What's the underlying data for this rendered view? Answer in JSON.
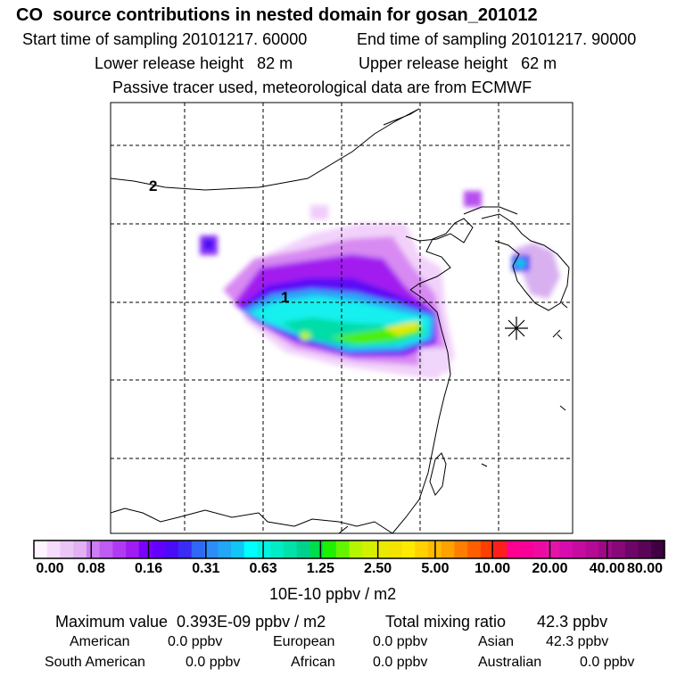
{
  "header": {
    "title": "CO  source contributions in nested domain for gosan_201012",
    "start_label": "Start time of sampling 20101217. 60000",
    "end_label": "End time of sampling 20101217. 90000",
    "lower_label": "Lower release height   82 m",
    "upper_label": "Upper release height   62 m",
    "tracer_label": "Passive tracer used, meteorological data are from ECMWF"
  },
  "map": {
    "contour_labels": [
      "2",
      "1"
    ],
    "receptor_marker": "asterisk-marker",
    "colors": {
      "coast": "#000000",
      "grid": "#000000"
    }
  },
  "colorbar": {
    "colors": [
      "#fff3ff",
      "#f4dcfa",
      "#eac6f6",
      "#e2b0f3",
      "#cc7ef2",
      "#be5cf2",
      "#b03af2",
      "#a01cf0",
      "#7a00ff",
      "#6400ff",
      "#4a0cf8",
      "#3a2cf4",
      "#2f68f6",
      "#2e8cf6",
      "#22a6f6",
      "#10c6f4",
      "#00ffff",
      "#00f6e2",
      "#00ecc6",
      "#00e2aa",
      "#00d28e",
      "#00dd4a",
      "#1ef000",
      "#64f400",
      "#b4f600",
      "#d2f000",
      "#e8ea00",
      "#f4e200",
      "#ffea00",
      "#ffd200",
      "#ffba00",
      "#ffa200",
      "#ff7e00",
      "#ff5e00",
      "#ff3e00",
      "#ff1e1e",
      "#ff0090",
      "#f80098",
      "#ee0aa0",
      "#e414a8",
      "#d80cae",
      "#c60ca0",
      "#b40a94",
      "#a00888",
      "#880878",
      "#6e0668",
      "#5a0458",
      "#3e0040"
    ],
    "tick_labels": [
      "0.00",
      "0.08",
      "0.16",
      "0.31",
      "0.63",
      "1.25",
      "2.50",
      "5.00",
      "10.00",
      "20.00",
      "40.00",
      "80.00"
    ],
    "units": "10E-10 ppbv / m2"
  },
  "stats": {
    "max_value": "Maximum value  0.393E-09 ppbv / m2",
    "total": "Total mixing ratio       42.3 ppbv",
    "american_label": "American",
    "american_value": "0.0 ppbv",
    "european_label": "European",
    "european_value": "0.0 ppbv",
    "asian_label": "Asian",
    "asian_value": "42.3 ppbv",
    "south_american_label": "South American",
    "south_american_value": "0.0 ppbv",
    "african_label": "African",
    "african_value": "0.0 ppbv",
    "australian_label": "Australian",
    "australian_value": "0.0 ppbv"
  }
}
